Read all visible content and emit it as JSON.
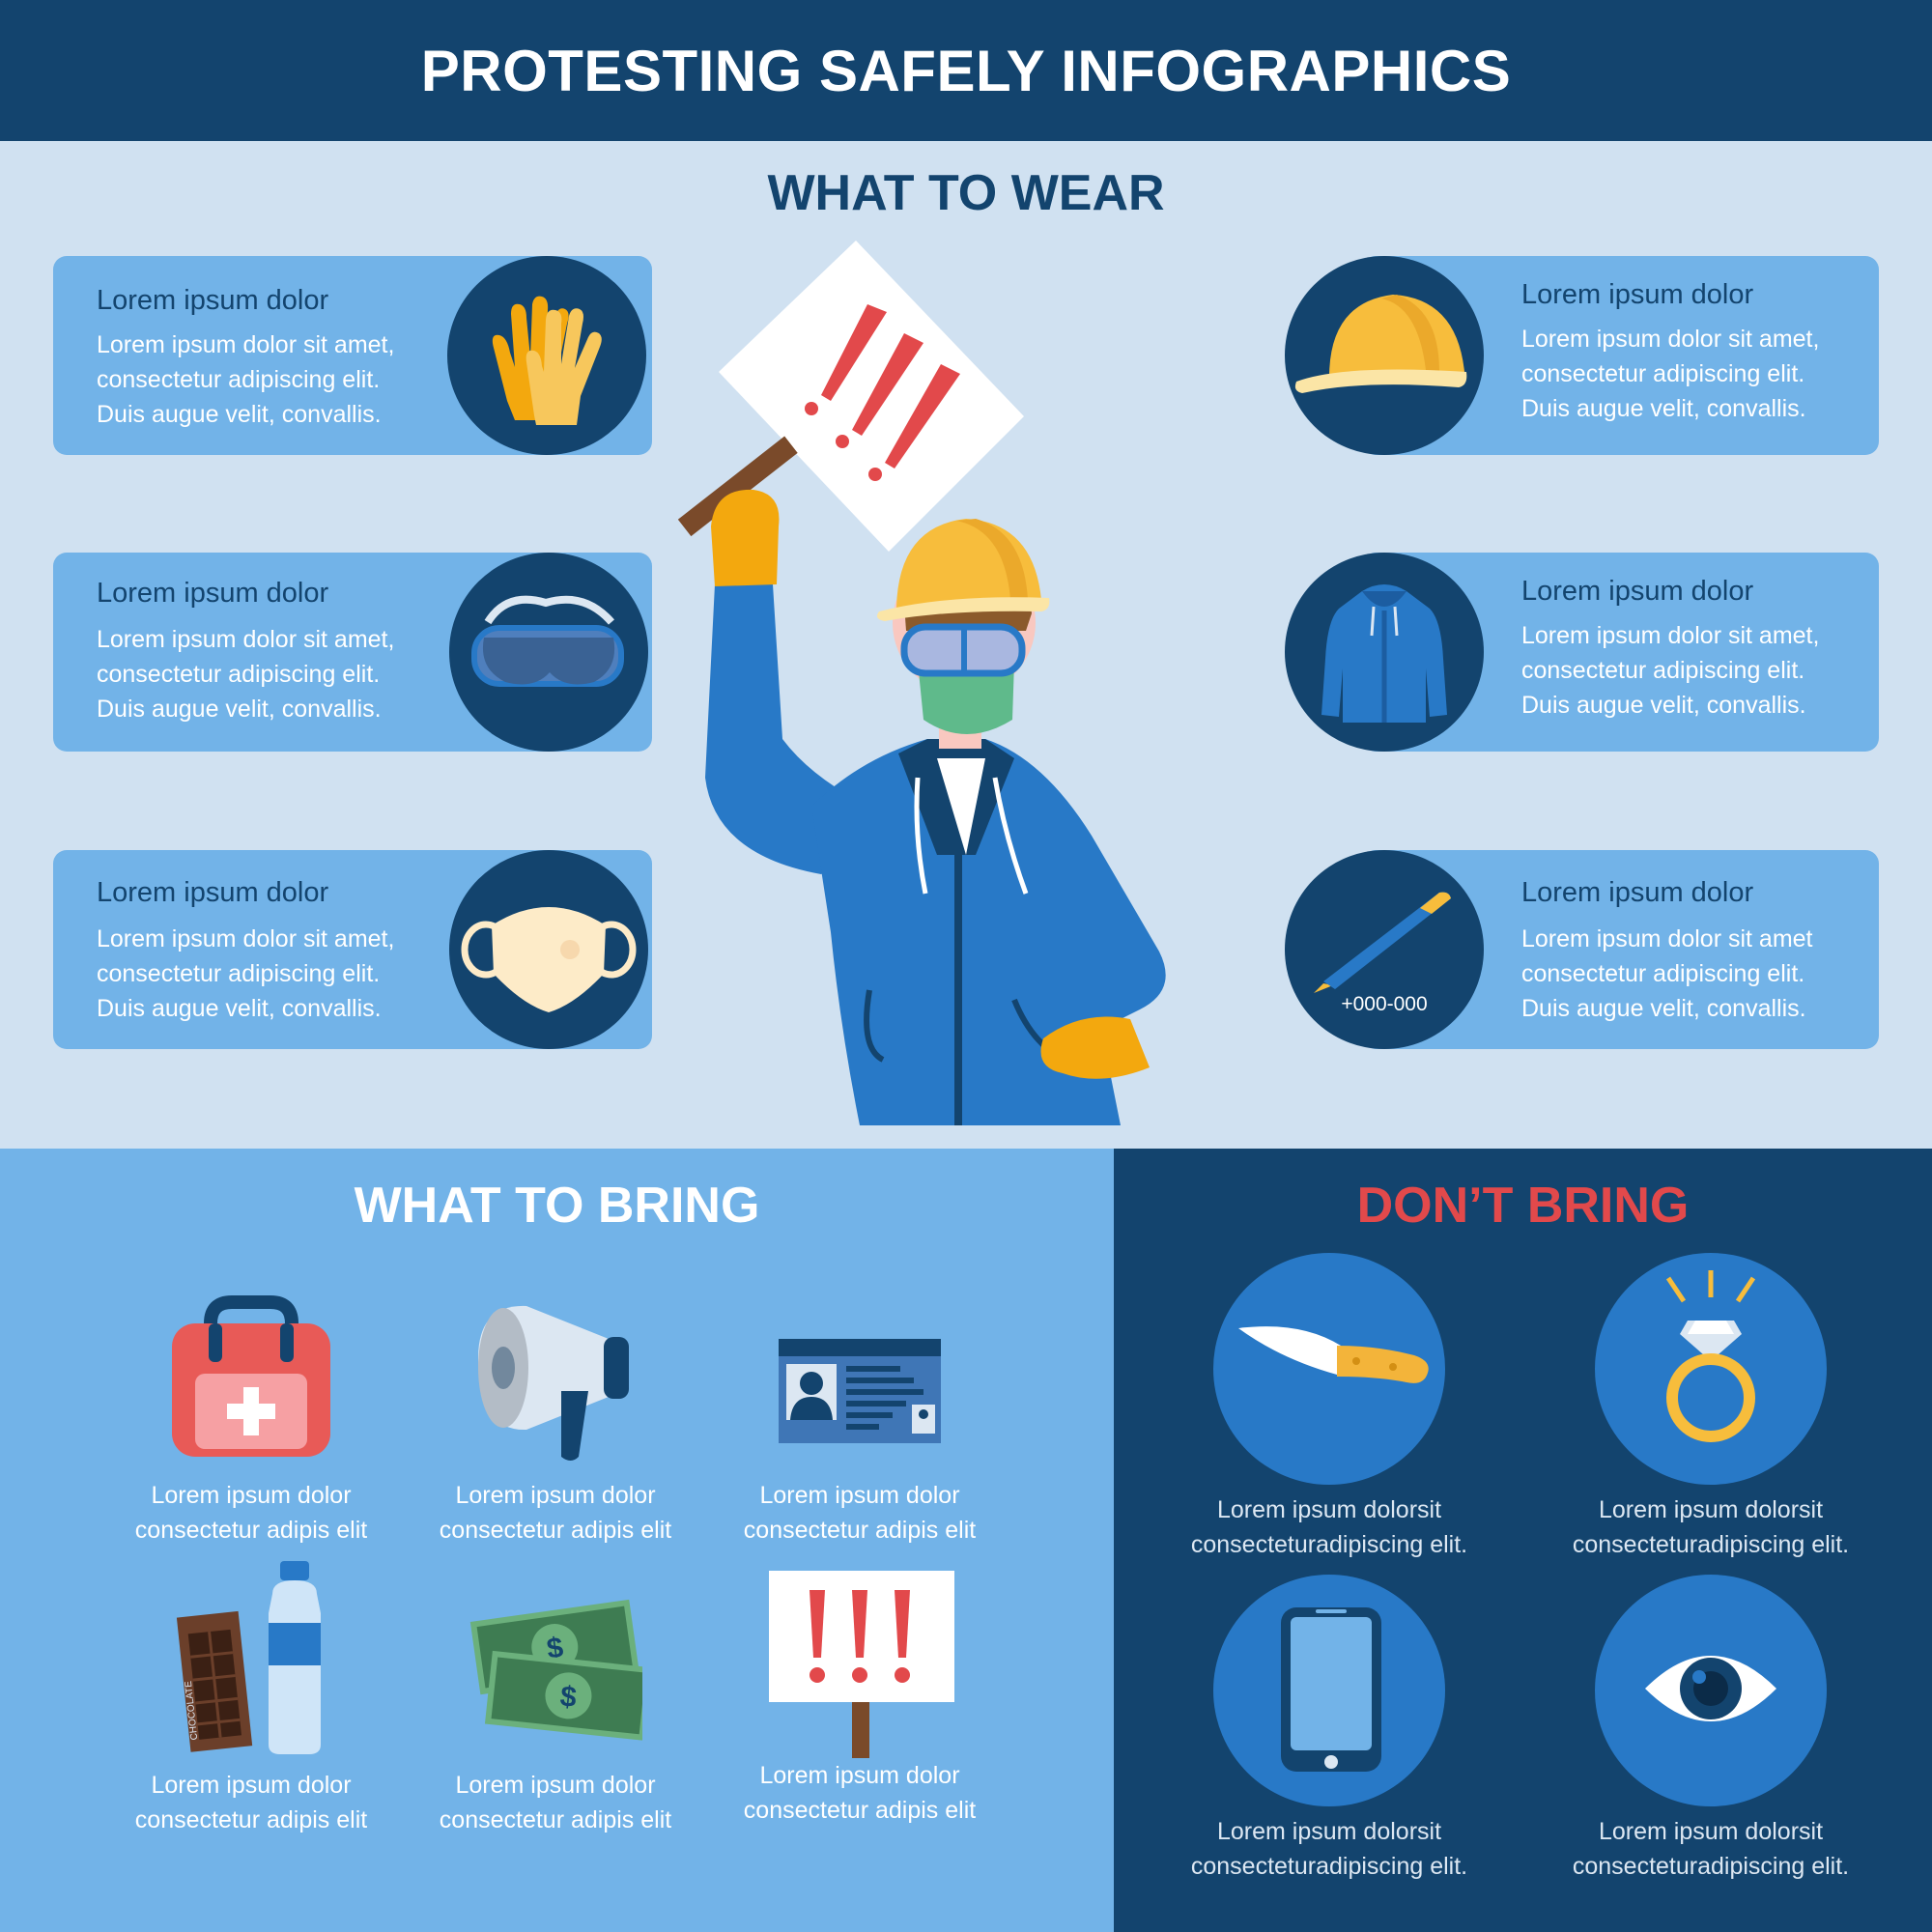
{
  "header": {
    "title": "PROTESTING SAFELY INFOGRAPHICS"
  },
  "wear": {
    "title": "WHAT TO WEAR",
    "left_cards": [
      {
        "icon": "gloves-icon",
        "title": "Lorem ipsum dolor",
        "lines": [
          "Lorem ipsum dolor sit amet,",
          "consectetur adipiscing elit.",
          "Duis augue velit, convallis."
        ]
      },
      {
        "icon": "goggles-icon",
        "title": "Lorem ipsum dolor",
        "lines": [
          "Lorem ipsum dolor sit amet,",
          "consectetur adipiscing elit.",
          "Duis augue velit, convallis."
        ]
      },
      {
        "icon": "face-mask-icon",
        "title": "Lorem ipsum dolor",
        "lines": [
          "Lorem ipsum dolor sit amet,",
          "consectetur adipiscing elit.",
          "Duis augue velit, convallis."
        ]
      }
    ],
    "right_cards": [
      {
        "icon": "helmet-icon",
        "title": "Lorem ipsum dolor",
        "lines": [
          "Lorem ipsum dolor sit amet,",
          "consectetur adipiscing elit.",
          "Duis augue velit, convallis."
        ]
      },
      {
        "icon": "jacket-icon",
        "title": "Lorem ipsum dolor",
        "lines": [
          "Lorem ipsum dolor sit amet,",
          "consectetur adipiscing elit.",
          "Duis augue velit, convallis."
        ]
      },
      {
        "icon": "pen-icon",
        "title": "Lorem ipsum dolor",
        "lines": [
          "Lorem ipsum dolor sit amet",
          "consectetur adipiscing elit.",
          "Duis augue velit, convallis."
        ],
        "phone": "+000-000"
      }
    ]
  },
  "bring": {
    "title": "WHAT TO BRING",
    "items": [
      {
        "icon": "first-aid-kit-icon",
        "lines": [
          "Lorem ipsum dolor",
          "consectetur adipis elit"
        ]
      },
      {
        "icon": "megaphone-icon",
        "lines": [
          "Lorem ipsum dolor",
          "consectetur adipis elit"
        ]
      },
      {
        "icon": "id-card-icon",
        "lines": [
          "Lorem ipsum dolor",
          "consectetur adipis elit"
        ]
      },
      {
        "icon": "snacks-water-icon",
        "lines": [
          "Lorem ipsum dolor",
          "consectetur adipis elit"
        ],
        "wrapper_text": "CHOCOLATE"
      },
      {
        "icon": "money-icon",
        "lines": [
          "Lorem ipsum dolor",
          "consectetur adipis elit"
        ]
      },
      {
        "icon": "protest-sign-icon",
        "lines": [
          "Lorem ipsum dolor",
          "consectetur adipis elit"
        ]
      }
    ]
  },
  "dont": {
    "title": "DON’T BRING",
    "items": [
      {
        "icon": "knife-icon",
        "lines": [
          "Lorem ipsum dolorsit",
          "consecteturadipiscing elit."
        ]
      },
      {
        "icon": "ring-icon",
        "lines": [
          "Lorem ipsum dolorsit",
          "consecteturadipiscing elit."
        ]
      },
      {
        "icon": "phone-icon",
        "lines": [
          "Lorem ipsum dolorsit",
          "consecteturadipiscing elit."
        ]
      },
      {
        "icon": "eye-icon",
        "lines": [
          "Lorem ipsum dolorsit",
          "consecteturadipiscing elit."
        ]
      }
    ]
  },
  "colors": {
    "navy": "#13446e",
    "light_bg": "#d0e1f1",
    "card_blue": "#72b3e8",
    "mid_blue": "#2879c7",
    "yellow": "#f7bd3c",
    "red": "#e2494b"
  }
}
